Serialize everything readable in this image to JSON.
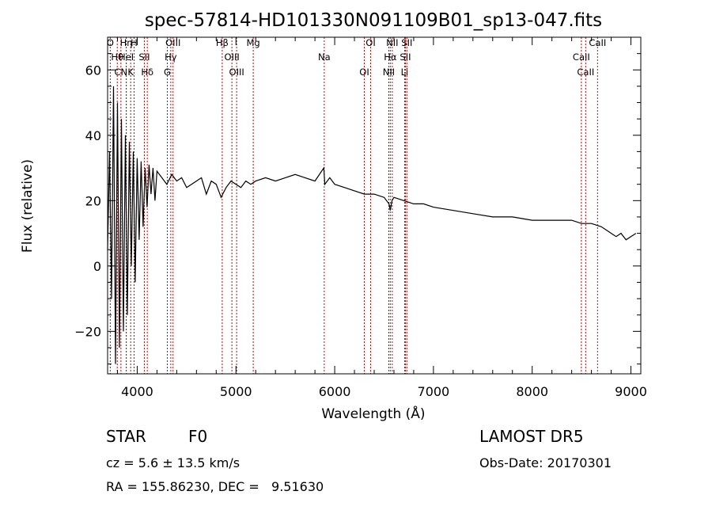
{
  "chart_data": {
    "type": "line",
    "title": "spec-57814-HD101330N091109B01_sp13-047.fits",
    "xlabel": "Wavelength (Å)",
    "ylabel": "Flux (relative)",
    "xlim": [
      3700,
      9100
    ],
    "ylim": [
      -33,
      70
    ],
    "xticks": [
      4000,
      5000,
      6000,
      7000,
      8000,
      9000
    ],
    "yticks": [
      -20,
      0,
      20,
      40,
      60
    ],
    "grid": false,
    "series": [
      {
        "color": "#000000",
        "x": [
          3700,
          3720,
          3740,
          3760,
          3780,
          3800,
          3820,
          3840,
          3860,
          3880,
          3900,
          3920,
          3940,
          3960,
          3980,
          4000,
          4020,
          4040,
          4060,
          4080,
          4100,
          4120,
          4140,
          4160,
          4180,
          4200,
          4250,
          4300,
          4350,
          4400,
          4450,
          4500,
          4550,
          4600,
          4650,
          4700,
          4750,
          4800,
          4850,
          4900,
          4950,
          5000,
          5050,
          5100,
          5150,
          5200,
          5300,
          5400,
          5500,
          5600,
          5700,
          5800,
          5890,
          5900,
          5950,
          6000,
          6100,
          6200,
          6300,
          6400,
          6500,
          6550,
          6563,
          6580,
          6600,
          6700,
          6800,
          6900,
          7000,
          7200,
          7400,
          7600,
          7800,
          8000,
          8100,
          8200,
          8300,
          8400,
          8500,
          8600,
          8700,
          8750,
          8800,
          8850,
          8900,
          8950,
          9000,
          9050
        ],
        "y": [
          5,
          35,
          -10,
          55,
          -30,
          50,
          -25,
          45,
          -20,
          40,
          -15,
          38,
          0,
          35,
          -5,
          33,
          8,
          32,
          12,
          30,
          18,
          31,
          22,
          30,
          20,
          29,
          27,
          25,
          28,
          26,
          27,
          24,
          25,
          26,
          27,
          22,
          26,
          25,
          21,
          24,
          26,
          25,
          24,
          26,
          25,
          26,
          27,
          26,
          27,
          28,
          27,
          26,
          30,
          25,
          27,
          25,
          24,
          23,
          22,
          22,
          21,
          19,
          17,
          20,
          21,
          20,
          19,
          19,
          18,
          17,
          16,
          15,
          15,
          14,
          14,
          14,
          14,
          14,
          13,
          13,
          12,
          11,
          10,
          9,
          10,
          8,
          9,
          10
        ]
      }
    ],
    "spectral_lines": [
      {
        "name": "O",
        "wavelength": 3727
      },
      {
        "name": "Hθ",
        "wavelength": 3798
      },
      {
        "name": "CN",
        "wavelength": 3835
      },
      {
        "name": "Hη",
        "wavelength": 3889
      },
      {
        "name": "HeI",
        "wavelength": 3889
      },
      {
        "name": "K",
        "wavelength": 3934
      },
      {
        "name": "H",
        "wavelength": 3968
      },
      {
        "name": "SII",
        "wavelength": 4072
      },
      {
        "name": "Hδ",
        "wavelength": 4102
      },
      {
        "name": "OIII",
        "wavelength": 4363
      },
      {
        "name": "Hγ",
        "wavelength": 4340
      },
      {
        "name": "G",
        "wavelength": 4305
      },
      {
        "name": "Hβ",
        "wavelength": 4861
      },
      {
        "name": "OIII",
        "wavelength": 4959
      },
      {
        "name": "OIII",
        "wavelength": 5007
      },
      {
        "name": "Mg",
        "wavelength": 5175
      },
      {
        "name": "Na",
        "wavelength": 5894
      },
      {
        "name": "OI",
        "wavelength": 6300
      },
      {
        "name": "OI",
        "wavelength": 6364
      },
      {
        "name": "Hα",
        "wavelength": 6563
      },
      {
        "name": "NII",
        "wavelength": 6548
      },
      {
        "name": "NII",
        "wavelength": 6583
      },
      {
        "name": "SII",
        "wavelength": 6716
      },
      {
        "name": "Li",
        "wavelength": 6708
      },
      {
        "name": "SII",
        "wavelength": 6731
      },
      {
        "name": "CaII",
        "wavelength": 8498
      },
      {
        "name": "CaII",
        "wavelength": 8542
      },
      {
        "name": "CaII",
        "wavelength": 8662
      }
    ],
    "line_color": "#cc0000"
  },
  "info": {
    "object_type": "STAR",
    "subclass": "F0",
    "redshift": "cz = 5.6 ± 13.5 km/s",
    "coords": "RA = 155.86230, DEC =   9.51630",
    "survey": "LAMOST DR5",
    "obs_date": "Obs-Date: 20170301"
  }
}
